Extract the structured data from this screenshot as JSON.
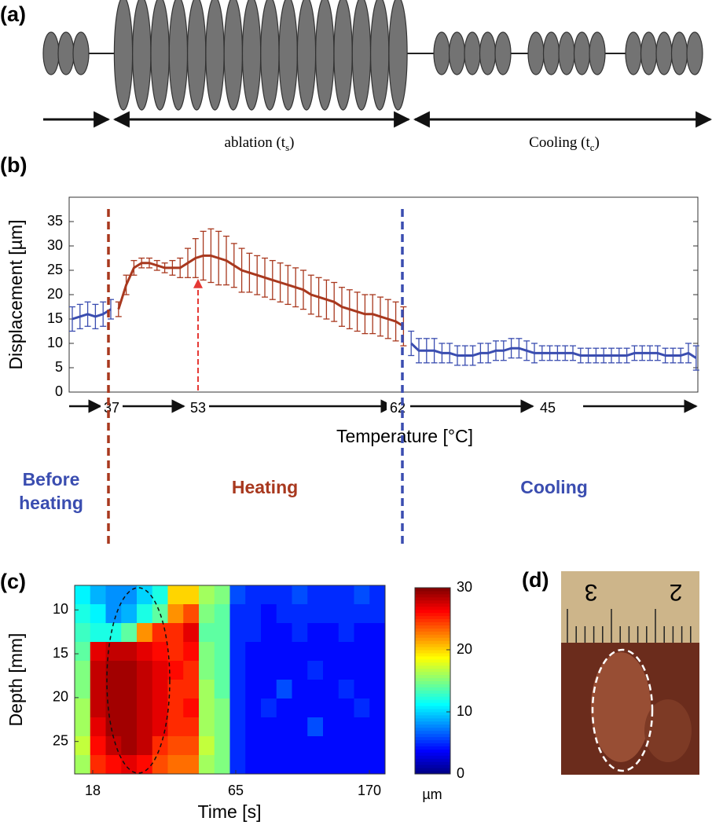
{
  "panels": {
    "a": {
      "label": "(a)",
      "ablation": {
        "text": "ablation (t",
        "sub": "s",
        "end": ")"
      },
      "cooling": {
        "text": "Cooling (t",
        "sub": "c",
        "end": ")"
      }
    },
    "b": {
      "label": "(b)"
    },
    "c": {
      "label": "(c)"
    },
    "d": {
      "label": "(d)",
      "ruler_numbers": [
        "3",
        "2"
      ]
    }
  },
  "chart_data": [
    {
      "type": "line",
      "ylabel": "Displacement [µm]",
      "xlabel": "Temperature [°C]",
      "ylim": [
        0,
        40
      ],
      "yticks": [
        0,
        5,
        10,
        15,
        20,
        25,
        30,
        35
      ],
      "temperature_marks": [
        37,
        53,
        62,
        45
      ],
      "series": [
        {
          "name": "Before heating",
          "color": "#3a4db0",
          "values": [
            15,
            15.5,
            16,
            15.5,
            16,
            17
          ],
          "errors": [
            2.5,
            2.5,
            2.5,
            2.5,
            2.5,
            2
          ]
        },
        {
          "name": "Heating",
          "color": "#a8381e",
          "values": [
            17,
            22,
            25.5,
            26.5,
            26.5,
            26,
            25.5,
            25.5,
            25.5,
            26.5,
            27.5,
            28,
            28,
            27.5,
            27,
            26,
            25,
            24.5,
            24,
            23.5,
            23,
            22.5,
            22,
            21.5,
            21,
            20,
            19.5,
            19,
            18.5,
            17.5,
            17,
            16.5,
            16,
            16,
            15.5,
            15,
            14.5,
            13.5
          ],
          "errors": [
            1.5,
            2,
            1.5,
            1,
            1,
            1,
            1,
            1.5,
            2,
            3,
            4,
            5,
            5.5,
            5.5,
            5,
            4.5,
            4.5,
            4,
            4,
            4,
            4,
            4,
            4,
            4,
            4,
            4,
            4,
            4,
            4,
            4,
            4,
            4,
            4,
            4,
            4,
            4,
            4,
            4
          ]
        },
        {
          "name": "Cooling",
          "color": "#3a4db0",
          "values": [
            10,
            8.5,
            8.5,
            8.5,
            8,
            8,
            7.5,
            7.5,
            7.5,
            8,
            8,
            8.5,
            8.5,
            9,
            9,
            8.5,
            8,
            8,
            8,
            8,
            8,
            8,
            7.5,
            7.5,
            7.5,
            7.5,
            7.5,
            7.5,
            7.5,
            8,
            8,
            8,
            8,
            7.5,
            7.5,
            7.5,
            8,
            7
          ],
          "errors": [
            2.5,
            2.5,
            2.5,
            2.5,
            2,
            2,
            2,
            2,
            2,
            2,
            2,
            2,
            2,
            2,
            2,
            2,
            2,
            1.5,
            1.5,
            1.5,
            1.5,
            1.5,
            1.5,
            1.5,
            1.5,
            1.5,
            1.5,
            1.5,
            1.5,
            1.5,
            1.5,
            1.5,
            1.5,
            1.5,
            1.5,
            1.5,
            2,
            2.5
          ]
        }
      ]
    },
    {
      "type": "heatmap",
      "xlabel": "Time [s]",
      "ylabel": "Depth [mm]",
      "colormap": "jet",
      "xticks": [
        18,
        65,
        170
      ],
      "ylim": [
        7.2,
        28.7
      ],
      "y_inverted": true,
      "yticks": [
        10,
        15,
        20,
        25
      ],
      "colorbar": {
        "lim": [
          0,
          30
        ],
        "ticks": [
          0,
          10,
          20,
          30
        ],
        "label": "µm"
      },
      "matrix": [
        [
          11,
          9,
          8,
          8,
          10,
          12,
          20,
          20,
          16,
          15,
          6,
          5,
          5,
          5,
          6,
          5,
          5,
          5,
          6,
          5
        ],
        [
          12,
          11,
          8,
          9,
          12,
          14,
          22,
          24,
          15,
          14,
          5,
          5,
          4,
          5,
          5,
          5,
          5,
          5,
          5,
          5
        ],
        [
          13,
          12,
          12,
          14,
          22,
          25,
          25,
          27,
          14,
          14,
          5,
          5,
          4,
          4,
          5,
          4,
          4,
          5,
          4,
          4
        ],
        [
          14,
          27,
          28,
          28,
          27,
          26,
          25,
          26,
          15,
          14,
          5,
          4,
          4,
          4,
          4,
          4,
          4,
          4,
          4,
          4
        ],
        [
          15,
          28,
          29,
          29,
          28,
          27,
          26,
          25,
          15,
          14,
          5,
          4,
          4,
          4,
          4,
          5,
          4,
          4,
          4,
          4
        ],
        [
          15,
          28,
          29,
          29,
          28,
          27,
          25,
          25,
          16,
          14,
          5,
          4,
          4,
          6,
          4,
          4,
          4,
          5,
          4,
          4
        ],
        [
          16,
          28,
          29,
          29,
          28,
          27,
          25,
          26,
          16,
          15,
          5,
          4,
          5,
          4,
          4,
          4,
          4,
          4,
          5,
          4
        ],
        [
          16,
          27,
          29,
          29,
          28,
          27,
          25,
          25,
          16,
          15,
          5,
          4,
          4,
          4,
          4,
          6,
          4,
          4,
          4,
          4
        ],
        [
          17,
          26,
          28,
          29,
          28,
          25,
          24,
          24,
          17,
          15,
          5,
          4,
          4,
          4,
          4,
          4,
          4,
          4,
          4,
          4
        ],
        [
          16,
          25,
          26,
          27,
          26,
          24,
          23,
          23,
          16,
          15,
          5,
          4,
          4,
          4,
          4,
          4,
          4,
          4,
          4,
          4
        ]
      ]
    }
  ]
}
